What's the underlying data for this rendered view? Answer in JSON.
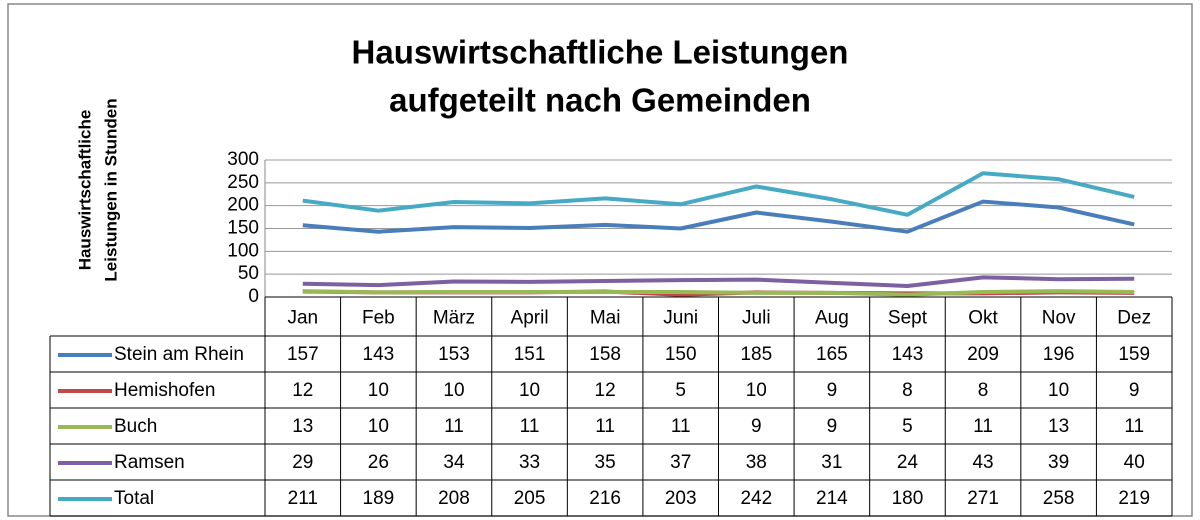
{
  "chart_data": {
    "type": "line",
    "title": [
      "Hauswirtschaftliche Leistungen",
      "aufgeteilt nach Gemeinden"
    ],
    "y_label": [
      "Hauswirtschaftliche",
      "Leistungen in Stunden"
    ],
    "categories": [
      "Jan",
      "Feb",
      "März",
      "April",
      "Mai",
      "Juni",
      "Juli",
      "Aug",
      "Sept",
      "Okt",
      "Nov",
      "Dez"
    ],
    "series": [
      {
        "name": "Stein am Rhein",
        "color": "#4a7ebb",
        "values": [
          157,
          143,
          153,
          151,
          158,
          150,
          185,
          165,
          143,
          209,
          196,
          159
        ]
      },
      {
        "name": "Hemishofen",
        "color": "#be4b48",
        "values": [
          12,
          10,
          10,
          10,
          12,
          5,
          10,
          9,
          8,
          8,
          10,
          9
        ]
      },
      {
        "name": "Buch",
        "color": "#98b954",
        "values": [
          13,
          10,
          11,
          11,
          11,
          11,
          9,
          9,
          5,
          11,
          13,
          11
        ]
      },
      {
        "name": "Ramsen",
        "color": "#7d60a0",
        "values": [
          29,
          26,
          34,
          33,
          35,
          37,
          38,
          31,
          24,
          43,
          39,
          40
        ]
      },
      {
        "name": "Total",
        "color": "#46aac5",
        "values": [
          211,
          189,
          208,
          205,
          216,
          203,
          242,
          214,
          180,
          271,
          258,
          219
        ]
      }
    ],
    "ylim": [
      0,
      300
    ],
    "yticks": [
      0,
      50,
      100,
      150,
      200,
      250,
      300
    ],
    "grid": true,
    "data_table": true
  }
}
